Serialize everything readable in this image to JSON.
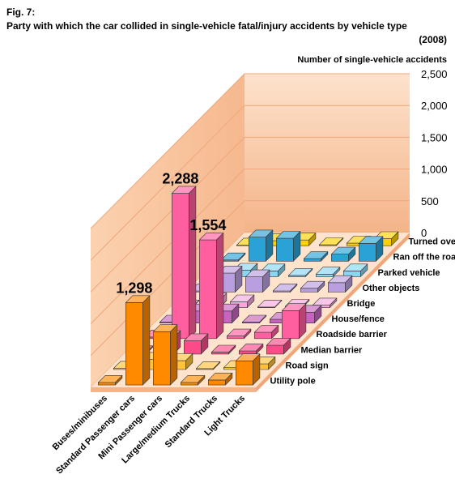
{
  "figure": {
    "label": "Fig. 7:",
    "title": "Party with which the car collided in single-vehicle fatal/injury accidents by vehicle type",
    "year": "(2008)"
  },
  "chart_data": {
    "type": "bar",
    "subtype": "3d-bar",
    "value_axis_label": "Number of single-vehicle accidents",
    "value_ticks": [
      "0",
      "500",
      "1,000",
      "1,500",
      "2,000",
      "2,500"
    ],
    "ylim": [
      0,
      2500
    ],
    "grid": true,
    "vehicle_types": [
      "Buses/minibuses",
      "Standard Passenger cars",
      "Mini Passenger cars",
      "Large/medium Trucks",
      "Standard Trucks",
      "Light Trucks"
    ],
    "collision_parties": [
      "Utility pole",
      "Road sign",
      "Median barrier",
      "Roadside barrier",
      "House/fence",
      "Bridge",
      "Other objects",
      "Parked vehicle",
      "Ran off the road",
      "Turned over"
    ],
    "party_colors": [
      "#ff8a00",
      "#ffc23a",
      "#ff4a8a",
      "#ff5f9e",
      "#c864c0",
      "#f4a8dc",
      "#b99ee0",
      "#88d6f2",
      "#2aa2d6",
      "#ffd000"
    ],
    "series": [
      {
        "name": "Utility pole",
        "values": [
          40,
          1298,
          840,
          40,
          80,
          380
        ]
      },
      {
        "name": "Road sign",
        "values": [
          20,
          160,
          140,
          15,
          30,
          90
        ]
      },
      {
        "name": "Median barrier",
        "values": [
          20,
          260,
          210,
          30,
          50,
          140
        ]
      },
      {
        "name": "Roadside barrier",
        "values": [
          25,
          2288,
          1554,
          40,
          100,
          440
        ]
      },
      {
        "name": "House/fence",
        "values": [
          15,
          190,
          190,
          15,
          60,
          170
        ]
      },
      {
        "name": "Bridge",
        "values": [
          10,
          120,
          90,
          10,
          20,
          40
        ]
      },
      {
        "name": "Other objects",
        "values": [
          20,
          300,
          240,
          20,
          60,
          150
        ]
      },
      {
        "name": "Parked vehicle",
        "values": [
          10,
          100,
          90,
          20,
          40,
          90
        ]
      },
      {
        "name": "Ran off the road",
        "values": [
          20,
          380,
          360,
          40,
          110,
          280
        ]
      },
      {
        "name": "Turned over",
        "values": [
          10,
          80,
          90,
          15,
          40,
          110
        ]
      }
    ],
    "data_labels": [
      {
        "text": "1,298",
        "party": 0,
        "vehicle": 1
      },
      {
        "text": "2,288",
        "party": 3,
        "vehicle": 1
      },
      {
        "text": "1,554",
        "party": 3,
        "vehicle": 2
      }
    ]
  }
}
